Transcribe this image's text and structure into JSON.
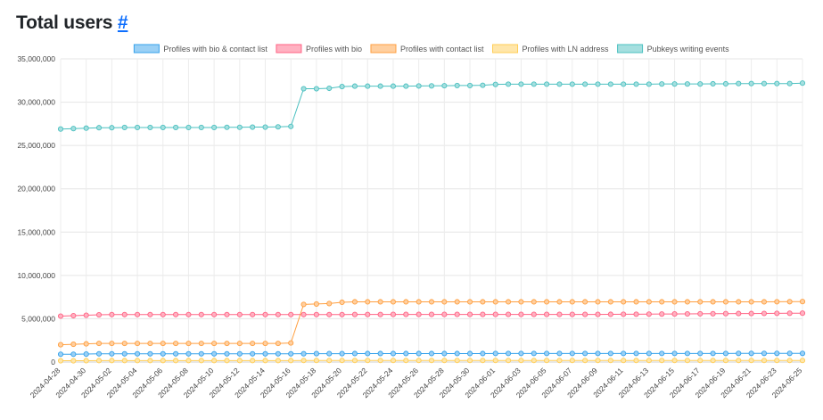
{
  "page": {
    "title": "Total users",
    "anchor": "#"
  },
  "chart_data": {
    "type": "line",
    "title": "",
    "xlabel": "",
    "ylabel": "",
    "ylim": [
      0,
      35000000
    ],
    "y_ticks": [
      0,
      5000000,
      10000000,
      15000000,
      20000000,
      25000000,
      30000000,
      35000000
    ],
    "y_tick_labels": [
      "0",
      "5,000,000",
      "10,000,000",
      "15,000,000",
      "20,000,000",
      "25,000,000",
      "30,000,000",
      "35,000,000"
    ],
    "grid": true,
    "legend_position": "top",
    "x": [
      "2024-04-28",
      "2024-04-29",
      "2024-04-30",
      "2024-05-01",
      "2024-05-02",
      "2024-05-03",
      "2024-05-04",
      "2024-05-05",
      "2024-05-06",
      "2024-05-07",
      "2024-05-08",
      "2024-05-09",
      "2024-05-10",
      "2024-05-11",
      "2024-05-12",
      "2024-05-13",
      "2024-05-14",
      "2024-05-15",
      "2024-05-16",
      "2024-05-17",
      "2024-05-18",
      "2024-05-19",
      "2024-05-20",
      "2024-05-21",
      "2024-05-22",
      "2024-05-23",
      "2024-05-24",
      "2024-05-25",
      "2024-05-26",
      "2024-05-27",
      "2024-05-28",
      "2024-05-29",
      "2024-05-30",
      "2024-05-31",
      "2024-06-01",
      "2024-06-02",
      "2024-06-03",
      "2024-06-04",
      "2024-06-05",
      "2024-06-06",
      "2024-06-07",
      "2024-06-08",
      "2024-06-09",
      "2024-06-10",
      "2024-06-11",
      "2024-06-12",
      "2024-06-13",
      "2024-06-14",
      "2024-06-15",
      "2024-06-16",
      "2024-06-17",
      "2024-06-18",
      "2024-06-19",
      "2024-06-20",
      "2024-06-21",
      "2024-06-22",
      "2024-06-23",
      "2024-06-24",
      "2024-06-25"
    ],
    "x_tick_labels": [
      "2024-04-28",
      "2024-04-30",
      "2024-05-02",
      "2024-05-04",
      "2024-05-06",
      "2024-05-08",
      "2024-05-10",
      "2024-05-12",
      "2024-05-14",
      "2024-05-16",
      "2024-05-18",
      "2024-05-20",
      "2024-05-22",
      "2024-05-24",
      "2024-05-26",
      "2024-05-28",
      "2024-05-30",
      "2024-06-01",
      "2024-06-03",
      "2024-06-05",
      "2024-06-07",
      "2024-06-09",
      "2024-06-11",
      "2024-06-13",
      "2024-06-15",
      "2024-06-17",
      "2024-06-19",
      "2024-06-21",
      "2024-06-23",
      "2024-06-25"
    ],
    "series": [
      {
        "name": "Profiles with bio & contact list",
        "color": "#36a2eb",
        "fill": "#9ad0f5",
        "values": [
          900000,
          900000,
          920000,
          950000,
          950000,
          950000,
          950000,
          950000,
          950000,
          950000,
          950000,
          950000,
          950000,
          950000,
          950000,
          950000,
          950000,
          950000,
          950000,
          960000,
          970000,
          970000,
          970000,
          980000,
          980000,
          980000,
          980000,
          980000,
          980000,
          980000,
          980000,
          980000,
          980000,
          980000,
          990000,
          990000,
          990000,
          990000,
          990000,
          990000,
          990000,
          990000,
          990000,
          990000,
          990000,
          990000,
          990000,
          990000,
          990000,
          990000,
          990000,
          990000,
          990000,
          1000000,
          1000000,
          1000000,
          1000000,
          1000000,
          1000000
        ]
      },
      {
        "name": "Profiles with bio",
        "color": "#ff6384",
        "fill": "#ffb1c1",
        "values": [
          5300000,
          5350000,
          5400000,
          5450000,
          5480000,
          5480000,
          5480000,
          5480000,
          5480000,
          5480000,
          5480000,
          5480000,
          5480000,
          5480000,
          5480000,
          5480000,
          5480000,
          5480000,
          5480000,
          5480000,
          5480000,
          5480000,
          5480000,
          5490000,
          5490000,
          5490000,
          5500000,
          5500000,
          5500000,
          5500000,
          5500000,
          5500000,
          5500000,
          5500000,
          5500000,
          5500000,
          5500000,
          5500000,
          5500000,
          5500000,
          5500000,
          5500000,
          5500000,
          5510000,
          5520000,
          5520000,
          5530000,
          5540000,
          5550000,
          5560000,
          5570000,
          5580000,
          5590000,
          5600000,
          5600000,
          5610000,
          5620000,
          5630000,
          5640000
        ]
      },
      {
        "name": "Profiles with contact list",
        "color": "#ff9f40",
        "fill": "#ffcf9f",
        "values": [
          2000000,
          2050000,
          2100000,
          2150000,
          2150000,
          2150000,
          2150000,
          2150000,
          2150000,
          2150000,
          2150000,
          2150000,
          2150000,
          2150000,
          2150000,
          2150000,
          2150000,
          2150000,
          2200000,
          6650000,
          6700000,
          6750000,
          6900000,
          6950000,
          6950000,
          6950000,
          6950000,
          6950000,
          6950000,
          6950000,
          6950000,
          6950000,
          6950000,
          6950000,
          6950000,
          6950000,
          6950000,
          6950000,
          6950000,
          6950000,
          6950000,
          6950000,
          6950000,
          6950000,
          6950000,
          6950000,
          6950000,
          6950000,
          6950000,
          6950000,
          6950000,
          6950000,
          6950000,
          6950000,
          6950000,
          6950000,
          6960000,
          6970000,
          6980000
        ]
      },
      {
        "name": "Profiles with LN address",
        "color": "#ffcd56",
        "fill": "#ffe6aa",
        "values": [
          150000,
          150000,
          160000,
          170000,
          170000,
          170000,
          170000,
          170000,
          170000,
          170000,
          170000,
          170000,
          170000,
          170000,
          170000,
          170000,
          170000,
          170000,
          170000,
          180000,
          180000,
          180000,
          180000,
          180000,
          180000,
          180000,
          180000,
          180000,
          180000,
          180000,
          180000,
          180000,
          180000,
          180000,
          180000,
          180000,
          180000,
          180000,
          180000,
          180000,
          180000,
          180000,
          180000,
          180000,
          180000,
          180000,
          180000,
          180000,
          180000,
          180000,
          180000,
          180000,
          180000,
          180000,
          180000,
          180000,
          180000,
          180000,
          180000
        ]
      },
      {
        "name": "Pubkeys writing events",
        "color": "#4bc0c0",
        "fill": "#a5dfdf",
        "values": [
          26900000,
          26950000,
          27000000,
          27050000,
          27050000,
          27080000,
          27080000,
          27080000,
          27080000,
          27080000,
          27080000,
          27080000,
          27080000,
          27100000,
          27100000,
          27120000,
          27120000,
          27150000,
          27200000,
          31550000,
          31550000,
          31600000,
          31800000,
          31850000,
          31850000,
          31850000,
          31850000,
          31850000,
          31870000,
          31880000,
          31900000,
          31920000,
          31920000,
          31950000,
          32050000,
          32080000,
          32080000,
          32080000,
          32080000,
          32080000,
          32080000,
          32080000,
          32080000,
          32080000,
          32080000,
          32080000,
          32080000,
          32100000,
          32100000,
          32100000,
          32100000,
          32120000,
          32120000,
          32150000,
          32150000,
          32150000,
          32150000,
          32150000,
          32200000
        ]
      }
    ]
  }
}
